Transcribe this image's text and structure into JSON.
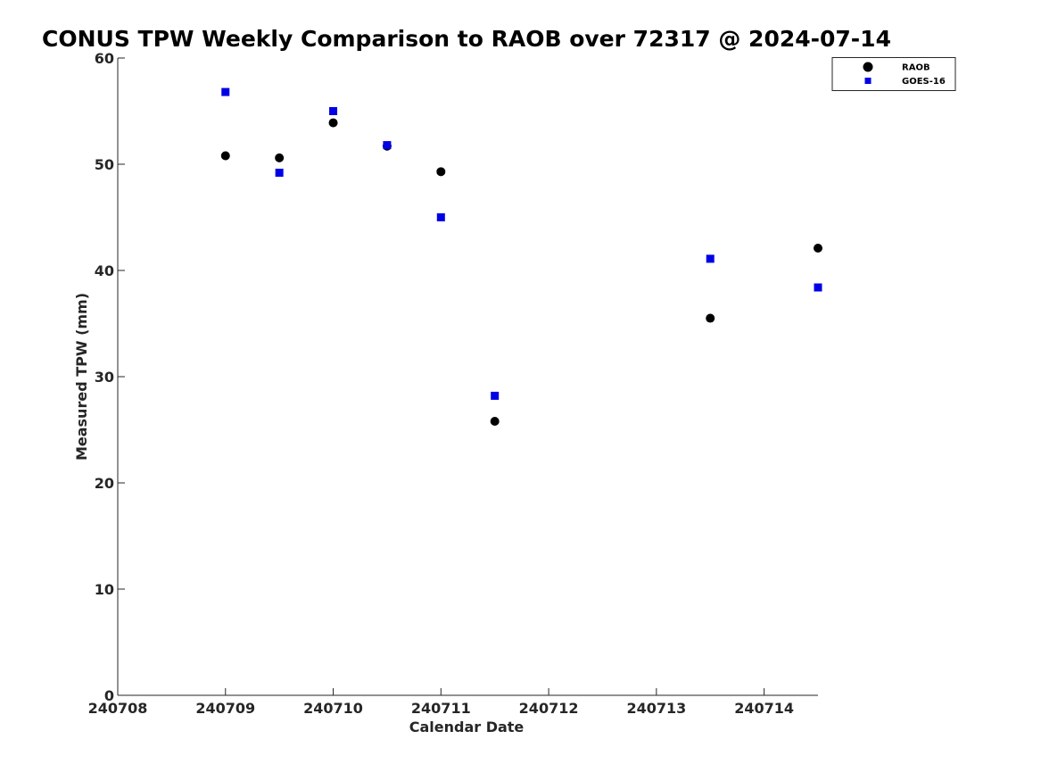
{
  "chart_data": {
    "type": "scatter",
    "title": "CONUS TPW Weekly Comparison to RAOB over 72317 @ 2024-07-14",
    "xlabel": "Calendar Date",
    "ylabel": "Measured TPW (mm)",
    "x_tick_labels": [
      "240708",
      "240709",
      "240710",
      "240711",
      "240712",
      "240713",
      "240714"
    ],
    "y_tick_labels": [
      "0",
      "10",
      "20",
      "30",
      "40",
      "50",
      "60"
    ],
    "xlim": [
      "2024-07-08T00:00",
      "2024-07-14T12:00"
    ],
    "ylim": [
      0,
      60
    ],
    "grid": false,
    "legend_position": "top-right",
    "series": [
      {
        "name": "RAOB",
        "marker": "circle",
        "color": "#000000",
        "points": [
          {
            "x": "2024-07-09T00:00",
            "y": 50.8
          },
          {
            "x": "2024-07-09T12:00",
            "y": 50.6
          },
          {
            "x": "2024-07-10T00:00",
            "y": 53.9
          },
          {
            "x": "2024-07-10T12:00",
            "y": 51.7
          },
          {
            "x": "2024-07-11T00:00",
            "y": 49.3
          },
          {
            "x": "2024-07-11T12:00",
            "y": 25.8
          },
          {
            "x": "2024-07-13T12:00",
            "y": 35.5
          },
          {
            "x": "2024-07-14T12:00",
            "y": 42.1
          }
        ]
      },
      {
        "name": "GOES-16",
        "marker": "square",
        "color": "#0000e6",
        "points": [
          {
            "x": "2024-07-09T00:00",
            "y": 56.8
          },
          {
            "x": "2024-07-09T12:00",
            "y": 49.2
          },
          {
            "x": "2024-07-10T00:00",
            "y": 55.0
          },
          {
            "x": "2024-07-10T12:00",
            "y": 51.8
          },
          {
            "x": "2024-07-11T00:00",
            "y": 45.0
          },
          {
            "x": "2024-07-11T12:00",
            "y": 28.2
          },
          {
            "x": "2024-07-13T12:00",
            "y": 41.1
          },
          {
            "x": "2024-07-14T12:00",
            "y": 38.4
          }
        ]
      }
    ]
  }
}
